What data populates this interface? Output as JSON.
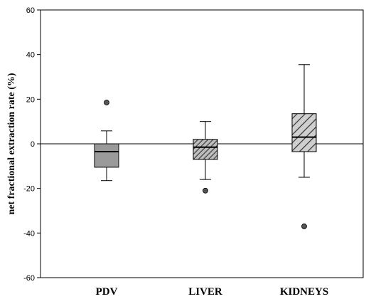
{
  "chart_data": {
    "type": "box",
    "title": "",
    "xlabel": "",
    "ylabel": "net fractional extraction rate (%)",
    "ylim": [
      -60,
      60
    ],
    "yticks": [
      -60,
      -40,
      -20,
      0,
      20,
      40,
      60
    ],
    "reference_line": 0,
    "grid": false,
    "categories": [
      "PDV",
      "LIVER",
      "KIDNEYS"
    ],
    "boxes": [
      {
        "category": "PDV",
        "whisker_low": -16.5,
        "q1": -10.5,
        "median": -3.5,
        "q3": 0,
        "whisker_high": 5.8,
        "outliers": [
          18.5
        ],
        "fill": "#9a9a9a",
        "pattern": "solid"
      },
      {
        "category": "LIVER",
        "whisker_low": -16,
        "q1": -7,
        "median": -1.5,
        "q3": 2,
        "whisker_high": 10,
        "outliers": [
          -21
        ],
        "fill": "#9a9a9a",
        "pattern": "hatch-dense"
      },
      {
        "category": "KIDNEYS",
        "whisker_low": -15,
        "q1": -3.5,
        "median": 3,
        "q3": 13.5,
        "whisker_high": 35.5,
        "outliers": [
          -37
        ],
        "fill": "#9a9a9a",
        "pattern": "hatch-sparse"
      }
    ]
  }
}
